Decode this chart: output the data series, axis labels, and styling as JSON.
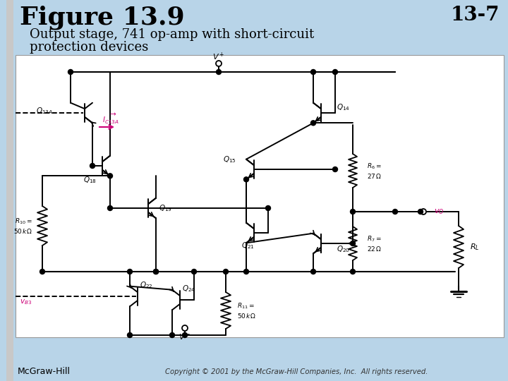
{
  "slide_bg": "#b8d4e8",
  "circuit_bg": "#ffffff",
  "black": "#000000",
  "magenta": "#cc0077",
  "gray_bar": "#d0d0d0",
  "title": "Figure 13.9",
  "page_num": "13-7",
  "subtitle1": "Output stage, 741 op-amp with short-circuit",
  "subtitle2": "protection devices",
  "footer_left": "McGraw-Hill",
  "footer_right": "Copyright © 2001 by the McGraw-Hill Companies, Inc.  All rights reserved."
}
